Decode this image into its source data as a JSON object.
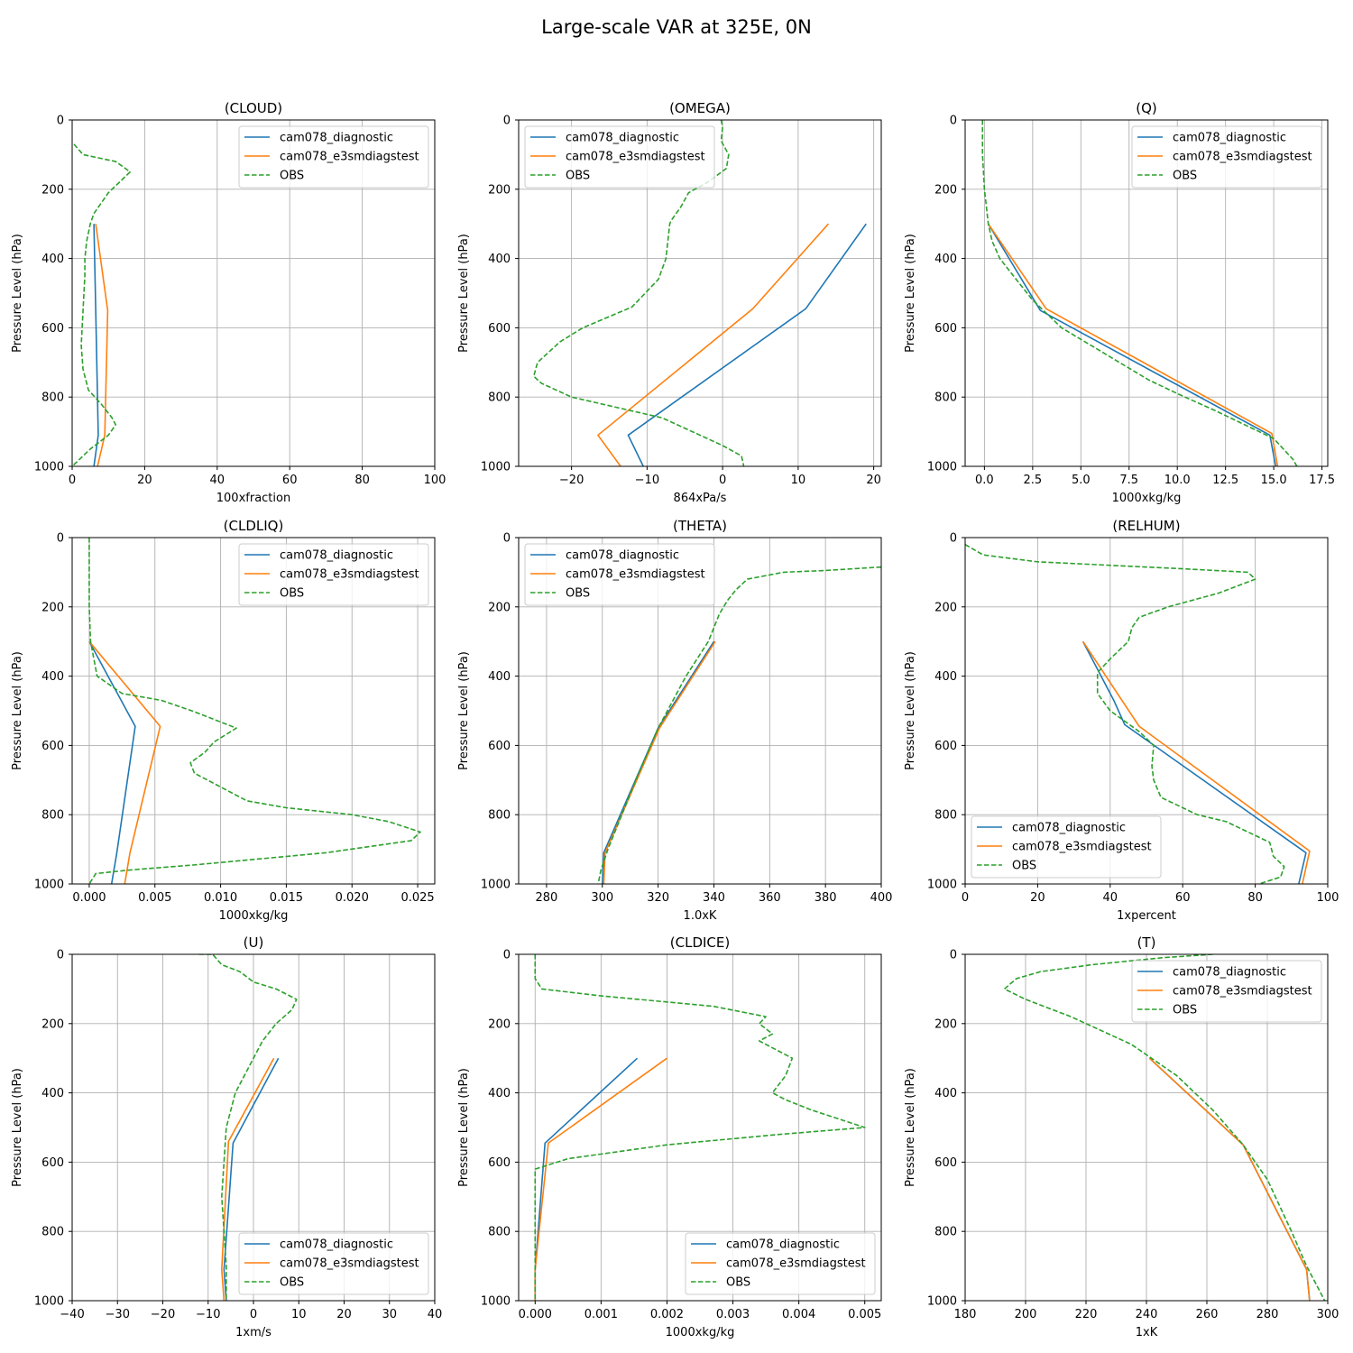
{
  "chart_data": {
    "suptitle": "Large-scale VAR at 325E, 0N",
    "colors": {
      "cam078_diagnostic": "#1f77b4",
      "cam078_e3smdiagstest": "#ff7f0e",
      "OBS": "#2ca02c"
    },
    "ylabel": "Pressure Level (hPa)",
    "ylim": [
      1000,
      0
    ],
    "yticks": [
      0,
      200,
      400,
      600,
      800,
      1000
    ],
    "panels": [
      {
        "type": "line",
        "title": "(CLOUD)",
        "xlabel": "100xfraction",
        "xlim": [
          0,
          100
        ],
        "xticks": [
          0,
          20,
          40,
          60,
          80,
          100
        ],
        "xtick_labels": [
          "0",
          "20",
          "40",
          "60",
          "80",
          "100"
        ],
        "legend": "upper right",
        "series": [
          {
            "name": "cam078_diagnostic",
            "style": "solid",
            "x": [
              6,
              6.5,
              7.2,
              6
            ],
            "p": [
              300,
              550,
              910,
              1000
            ]
          },
          {
            "name": "cam078_e3smdiagstest",
            "style": "solid",
            "x": [
              6.5,
              9.8,
              9.0,
              7.0
            ],
            "p": [
              300,
              550,
              910,
              1000
            ]
          },
          {
            "name": "OBS",
            "style": "dashed",
            "x": [
              0.5,
              3,
              12,
              16,
              13,
              10,
              8,
              6,
              5,
              4,
              3.5,
              3.5,
              3,
              2.5,
              3,
              4.5,
              8,
              11,
              12,
              10,
              5,
              2,
              0
            ],
            "p": [
              70,
              100,
              120,
              150,
              180,
              210,
              240,
              270,
              300,
              350,
              400,
              450,
              550,
              650,
              720,
              780,
              820,
              860,
              880,
              910,
              950,
              980,
              1000
            ]
          }
        ]
      },
      {
        "type": "line",
        "title": "(OMEGA)",
        "xlabel": "864xPa/s",
        "xlim": [
          -27,
          21
        ],
        "xticks": [
          -20,
          -10,
          0,
          10,
          20
        ],
        "xtick_labels": [
          "−20",
          "−10",
          "0",
          "10",
          "20"
        ],
        "legend": "upper left",
        "series": [
          {
            "name": "cam078_diagnostic",
            "style": "solid",
            "x": [
              19,
              11,
              -12.5,
              -10.5
            ],
            "p": [
              300,
              545,
              910,
              1000
            ]
          },
          {
            "name": "cam078_e3smdiagstest",
            "style": "solid",
            "x": [
              14,
              4,
              -16.5,
              -13.5
            ],
            "p": [
              300,
              545,
              910,
              1000
            ]
          },
          {
            "name": "OBS",
            "style": "dashed",
            "x": [
              -0.2,
              0,
              -0.2,
              0.8,
              0.5,
              -2,
              -4.5,
              -5.5,
              -6.8,
              -7,
              -7.5,
              -8.5,
              -12,
              -18.5,
              -21.5,
              -24.5,
              -25,
              -24,
              -20,
              -12,
              -8,
              -4,
              0,
              2.5,
              2.8
            ],
            "p": [
              0,
              20,
              60,
              100,
              140,
              180,
              210,
              250,
              290,
              300,
              400,
              460,
              540,
              600,
              640,
              700,
              740,
              760,
              800,
              840,
              860,
              900,
              940,
              970,
              1000
            ]
          }
        ]
      },
      {
        "type": "line",
        "title": "(Q)",
        "xlabel": "1000xkg/kg",
        "xlim": [
          -1,
          17.8
        ],
        "xticks": [
          0,
          2.5,
          5,
          7.5,
          10,
          12.5,
          15,
          17.5
        ],
        "xtick_labels": [
          "0.0",
          "2.5",
          "5.0",
          "7.5",
          "10.0",
          "12.5",
          "15.0",
          "17.5"
        ],
        "legend": "upper right",
        "series": [
          {
            "name": "cam078_diagnostic",
            "style": "solid",
            "x": [
              0.2,
              2.9,
              14.8,
              15.1
            ],
            "p": [
              300,
              550,
              910,
              1000
            ]
          },
          {
            "name": "cam078_e3smdiagstest",
            "style": "solid",
            "x": [
              0.2,
              3.2,
              14.9,
              15.2
            ],
            "p": [
              300,
              545,
              905,
              1000
            ]
          },
          {
            "name": "OBS",
            "style": "dashed",
            "x": [
              -0.1,
              -0.1,
              0,
              0.1,
              0.2,
              0.4,
              0.8,
              1.5,
              2.5,
              4,
              5.5,
              7,
              8.5,
              10,
              12,
              13.5,
              15,
              16,
              16.2
            ],
            "p": [
              0,
              100,
              200,
              250,
              300,
              350,
              400,
              450,
              520,
              600,
              650,
              700,
              750,
              790,
              840,
              880,
              920,
              980,
              1000
            ]
          }
        ]
      },
      {
        "type": "line",
        "title": "(CLDLIQ)",
        "xlabel": "1000xkg/kg",
        "xlim": [
          -0.0013,
          0.0263
        ],
        "xticks": [
          0,
          0.005,
          0.01,
          0.015,
          0.02,
          0.025
        ],
        "xtick_labels": [
          "0.000",
          "0.005",
          "0.010",
          "0.015",
          "0.020",
          "0.025"
        ],
        "legend": "upper right",
        "series": [
          {
            "name": "cam078_diagnostic",
            "style": "solid",
            "x": [
              0,
              0.0035,
              0.0021,
              0.0017
            ],
            "p": [
              300,
              545,
              910,
              1000
            ]
          },
          {
            "name": "cam078_e3smdiagstest",
            "style": "solid",
            "x": [
              0,
              0.0054,
              0.0031,
              0.0027
            ],
            "p": [
              300,
              545,
              910,
              1000
            ]
          },
          {
            "name": "OBS",
            "style": "dashed",
            "x": [
              0,
              0,
              0,
              0.0001,
              0.0006,
              0.0025,
              0.0055,
              0.0078,
              0.0112,
              0.0095,
              0.0088,
              0.0077,
              0.008,
              0.01,
              0.012,
              0.015,
              0.02,
              0.0228,
              0.0252,
              0.0245,
              0.018,
              0.008,
              0.003,
              0.0005,
              0
            ],
            "p": [
              0,
              100,
              200,
              300,
              400,
              450,
              470,
              500,
              550,
              590,
              620,
              650,
              680,
              720,
              760,
              780,
              800,
              820,
              850,
              875,
              910,
              945,
              960,
              970,
              1000
            ]
          }
        ]
      },
      {
        "type": "line",
        "title": "(THETA)",
        "xlabel": "1.0xK",
        "xlim": [
          270,
          400
        ],
        "xticks": [
          280,
          300,
          320,
          340,
          360,
          380,
          400
        ],
        "xtick_labels": [
          "280",
          "300",
          "320",
          "340",
          "360",
          "380",
          "400"
        ],
        "legend": "upper left",
        "series": [
          {
            "name": "cam078_diagnostic",
            "style": "solid",
            "x": [
              340,
              320,
              300.5,
              300
            ],
            "p": [
              300,
              550,
              910,
              1000
            ]
          },
          {
            "name": "cam078_e3smdiagstest",
            "style": "solid",
            "x": [
              340.5,
              320.5,
              301,
              300.5
            ],
            "p": [
              300,
              550,
              910,
              1000
            ]
          },
          {
            "name": "OBS",
            "style": "dashed",
            "x": [
              400,
              380,
              365,
              352,
              348,
              345,
              342,
              338,
              330,
              320,
              312,
              306,
              302,
              299.5,
              298.5
            ],
            "p": [
              85,
              95,
              100,
              120,
              150,
              180,
              220,
              300,
              400,
              550,
              700,
              820,
              900,
              960,
              1000
            ]
          }
        ]
      },
      {
        "type": "line",
        "title": "(RELHUM)",
        "xlabel": "1xpercent",
        "xlim": [
          0,
          100
        ],
        "xticks": [
          0,
          20,
          40,
          60,
          80,
          100
        ],
        "xtick_labels": [
          "0",
          "20",
          "40",
          "60",
          "80",
          "100"
        ],
        "legend": "lower left",
        "series": [
          {
            "name": "cam078_diagnostic",
            "style": "solid",
            "x": [
              32.5,
              41,
              44,
              94,
              92
            ],
            "p": [
              300,
              470,
              540,
              910,
              1000
            ]
          },
          {
            "name": "cam078_e3smdiagstest",
            "style": "solid",
            "x": [
              32.5,
              48,
              95,
              93
            ],
            "p": [
              300,
              545,
              905,
              1000
            ]
          },
          {
            "name": "OBS",
            "style": "dashed",
            "x": [
              0,
              5,
              20,
              60,
              78,
              80,
              70,
              56,
              48,
              46,
              45,
              40,
              36.5,
              36.5,
              40,
              48,
              52,
              51.5,
              52,
              54,
              64,
              72,
              84,
              85,
              88,
              87,
              81
            ],
            "p": [
              20,
              50,
              70,
              90,
              100,
              120,
              160,
              200,
              230,
              260,
              300,
              350,
              390,
              450,
              500,
              560,
              600,
              660,
              700,
              750,
              800,
              820,
              880,
              920,
              950,
              980,
              1000
            ]
          }
        ]
      },
      {
        "type": "line",
        "title": "(U)",
        "xlabel": "1xm/s",
        "xlim": [
          -40,
          40
        ],
        "xticks": [
          -40,
          -30,
          -20,
          -10,
          0,
          10,
          20,
          30,
          40
        ],
        "xtick_labels": [
          "−40",
          "−30",
          "−20",
          "−10",
          "0",
          "10",
          "20",
          "30",
          "40"
        ],
        "legend": "lower right",
        "series": [
          {
            "name": "cam078_diagnostic",
            "style": "solid",
            "x": [
              5.5,
              -4.5,
              -6.5,
              -6
            ],
            "p": [
              300,
              545,
              910,
              1000
            ]
          },
          {
            "name": "cam078_e3smdiagstest",
            "style": "solid",
            "x": [
              4.5,
              -5.5,
              -7,
              -6.5
            ],
            "p": [
              300,
              540,
              910,
              1000
            ]
          },
          {
            "name": "OBS",
            "style": "dashed",
            "x": [
              -12,
              -9,
              -7,
              -3,
              0,
              5,
              9.5,
              8.5,
              5,
              2,
              0,
              -2,
              -4,
              -5,
              -6,
              -6.5,
              -7,
              -6.5,
              -6,
              -6
            ],
            "p": [
              0,
              0,
              30,
              50,
              80,
              100,
              130,
              160,
              200,
              250,
              300,
              350,
              400,
              450,
              500,
              600,
              700,
              800,
              900,
              1000
            ]
          }
        ]
      },
      {
        "type": "line",
        "title": "(CLDICE)",
        "xlabel": "1000xkg/kg",
        "xlim": [
          -0.00025,
          0.00525
        ],
        "xticks": [
          0,
          0.001,
          0.002,
          0.003,
          0.004,
          0.005
        ],
        "xtick_labels": [
          "0.000",
          "0.001",
          "0.002",
          "0.003",
          "0.004",
          "0.005"
        ],
        "legend": "lower right",
        "series": [
          {
            "name": "cam078_diagnostic",
            "style": "solid",
            "x": [
              0.00155,
              0.00015,
              0,
              0
            ],
            "p": [
              300,
              545,
              910,
              1000
            ]
          },
          {
            "name": "cam078_e3smdiagstest",
            "style": "solid",
            "x": [
              0.002,
              0.0002,
              0,
              0
            ],
            "p": [
              300,
              545,
              910,
              1000
            ]
          },
          {
            "name": "OBS",
            "style": "dashed",
            "x": [
              0,
              0,
              0.0001,
              0.001,
              0.0027,
              0.0035,
              0.0034,
              0.0036,
              0.0034,
              0.0037,
              0.0039,
              0.0038,
              0.0036,
              0.0038,
              0.0042,
              0.005,
              0.0037,
              0.002,
              0.0005,
              0,
              0,
              0
            ],
            "p": [
              0,
              70,
              100,
              120,
              150,
              180,
              200,
              230,
              250,
              280,
              300,
              350,
              400,
              420,
              450,
              500,
              520,
              550,
              590,
              620,
              800,
              1000
            ]
          }
        ]
      },
      {
        "type": "line",
        "title": "(T)",
        "xlabel": "1xK",
        "xlim": [
          180,
          300
        ],
        "xticks": [
          180,
          200,
          220,
          240,
          260,
          280,
          300
        ],
        "xtick_labels": [
          "180",
          "200",
          "220",
          "240",
          "260",
          "280",
          "300"
        ],
        "legend": "upper right",
        "series": [
          {
            "name": "cam078_diagnostic",
            "style": "solid",
            "x": [
              241,
              272,
              293,
              294
            ],
            "p": [
              300,
              550,
              910,
              1000
            ]
          },
          {
            "name": "cam078_e3smdiagstest",
            "style": "solid",
            "x": [
              241,
              272,
              293,
              294
            ],
            "p": [
              300,
              550,
              910,
              1000
            ]
          },
          {
            "name": "OBS",
            "style": "dashed",
            "x": [
              262,
              245,
              222,
              205,
              197,
              193,
              200,
              215,
              235,
              250,
              262,
              272,
              280,
              288,
              293,
              296,
              299
            ],
            "p": [
              0,
              10,
              30,
              50,
              70,
              100,
              130,
              180,
              260,
              350,
              450,
              550,
              650,
              800,
              900,
              950,
              1000
            ]
          }
        ]
      }
    ]
  }
}
